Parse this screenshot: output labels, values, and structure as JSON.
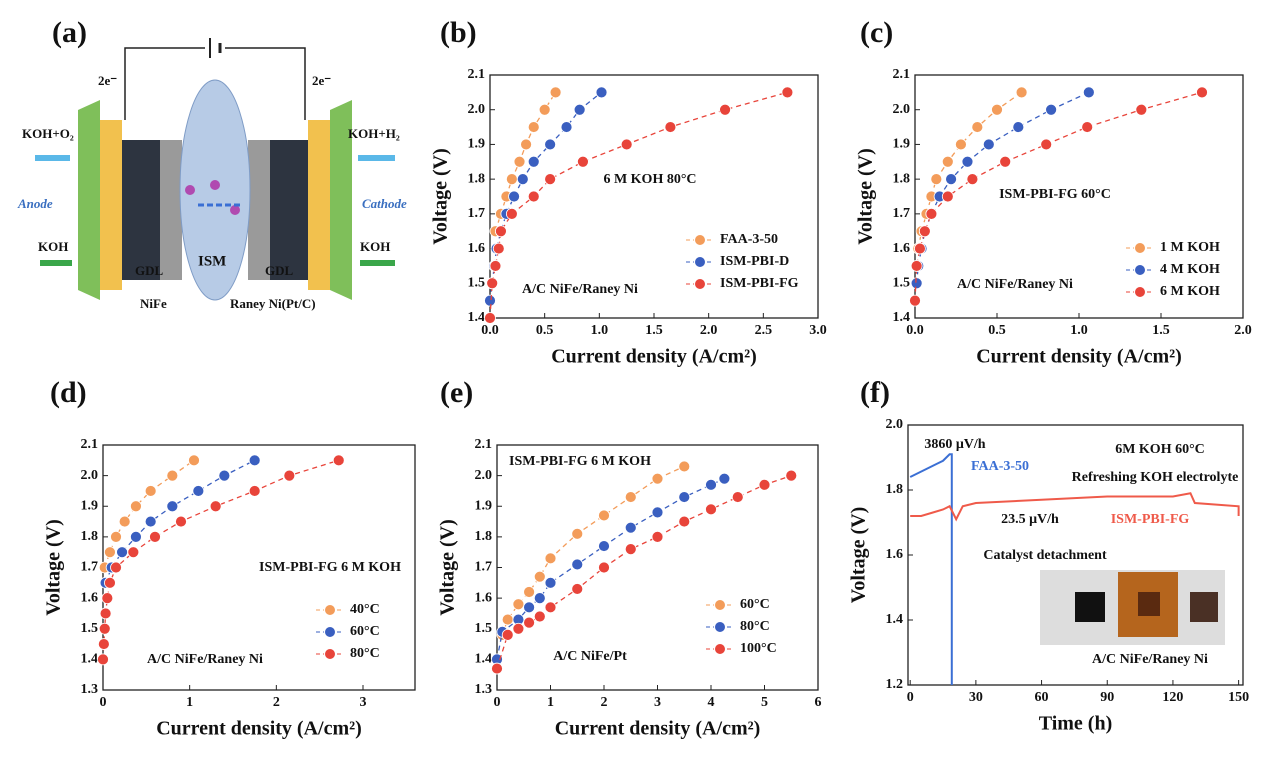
{
  "diagram": {
    "label": "(a)",
    "texts": [
      "2e⁻",
      "2e⁻",
      "KOH+O₂",
      "KOH+H₂",
      "Anode",
      "Cathode",
      "KOH",
      "KOH",
      "GDL",
      "GDL",
      "ISM",
      "NiFe",
      "Raney Ni(Pt/C)"
    ]
  },
  "chart_data": [
    {
      "label": "(b)",
      "type": "line",
      "linestyle": "dashed",
      "markers": true,
      "legend": "lower right",
      "xlabel": "Current density (A/cm²)",
      "ylabel": "Voltage (V)",
      "xlim": [
        0,
        3
      ],
      "ylim": [
        1.4,
        2.1
      ],
      "xticks": [
        {
          "value": 0,
          "label": "0.0"
        },
        0.5,
        {
          "value": 1,
          "label": "1.0"
        },
        1.5,
        {
          "value": 2,
          "label": "2.0"
        },
        2.5,
        {
          "value": 3,
          "label": "3.0"
        }
      ],
      "yticks": [
        1.4,
        1.5,
        1.6,
        1.7,
        1.8,
        1.9,
        {
          "value": 2,
          "label": "2.0"
        },
        2.1
      ],
      "annotations": [
        "6 M KOH  80°C",
        "A/C NiFe/Raney Ni"
      ],
      "series": [
        {
          "name": "FAA-3-50",
          "color": "#f39c5a",
          "x": [
            0.05,
            0.1,
            0.15,
            0.2,
            0.27,
            0.33,
            0.4,
            0.5,
            0.6
          ],
          "values": [
            1.65,
            1.7,
            1.75,
            1.8,
            1.85,
            1.9,
            1.95,
            2.0,
            2.05
          ]
        },
        {
          "name": "ISM-PBI-D",
          "color": "#3a5fc0",
          "x": [
            0,
            0.02,
            0.04,
            0.06,
            0.1,
            0.15,
            0.22,
            0.3,
            0.4,
            0.55,
            0.7,
            0.82,
            1.02
          ],
          "values": [
            1.45,
            1.5,
            1.55,
            1.6,
            1.65,
            1.7,
            1.75,
            1.8,
            1.85,
            1.9,
            1.95,
            2.0,
            2.05
          ]
        },
        {
          "name": "ISM-PBI-FG",
          "color": "#e8443a",
          "x": [
            0,
            0.02,
            0.05,
            0.08,
            0.1,
            0.2,
            0.4,
            0.55,
            0.85,
            1.25,
            1.65,
            2.15,
            2.72
          ],
          "values": [
            1.4,
            1.5,
            1.55,
            1.6,
            1.65,
            1.7,
            1.75,
            1.8,
            1.85,
            1.9,
            1.95,
            2.0,
            2.05
          ]
        }
      ]
    },
    {
      "label": "(c)",
      "type": "line",
      "linestyle": "dashed",
      "markers": true,
      "legend": "lower right",
      "xlabel": "Current density (A/cm²)",
      "ylabel": "Voltage (V)",
      "xlim": [
        0,
        2
      ],
      "ylim": [
        1.4,
        2.1
      ],
      "xticks": [
        {
          "value": 0,
          "label": "0.0"
        },
        0.5,
        {
          "value": 1,
          "label": "1.0"
        },
        1.5,
        {
          "value": 2,
          "label": "2.0"
        }
      ],
      "yticks": [
        1.4,
        1.5,
        1.6,
        1.7,
        1.8,
        1.9,
        {
          "value": 2,
          "label": "2.0"
        },
        2.1
      ],
      "annotations": [
        "ISM-PBI-FG  60°C",
        "A/C NiFe/Raney Ni"
      ],
      "series": [
        {
          "name": "1 M KOH",
          "color": "#f39c5a",
          "x": [
            0.02,
            0.04,
            0.07,
            0.1,
            0.13,
            0.2,
            0.28,
            0.38,
            0.5,
            0.65
          ],
          "values": [
            1.6,
            1.65,
            1.7,
            1.75,
            1.8,
            1.85,
            1.9,
            1.95,
            2.0,
            2.05
          ]
        },
        {
          "name": "4 M KOH",
          "color": "#3a5fc0",
          "x": [
            0.01,
            0.02,
            0.04,
            0.06,
            0.1,
            0.15,
            0.22,
            0.32,
            0.45,
            0.63,
            0.83,
            1.06
          ],
          "values": [
            1.5,
            1.55,
            1.6,
            1.65,
            1.7,
            1.75,
            1.8,
            1.85,
            1.9,
            1.95,
            2.0,
            2.05
          ]
        },
        {
          "name": "6 M KOH",
          "color": "#e8443a",
          "x": [
            0,
            0.01,
            0.03,
            0.06,
            0.1,
            0.2,
            0.35,
            0.55,
            0.8,
            1.05,
            1.38,
            1.75
          ],
          "values": [
            1.45,
            1.55,
            1.6,
            1.65,
            1.7,
            1.75,
            1.8,
            1.85,
            1.9,
            1.95,
            2.0,
            2.05
          ]
        }
      ]
    },
    {
      "label": "(d)",
      "type": "line",
      "linestyle": "dashed",
      "markers": true,
      "legend": "lower right",
      "xlabel": "Current density (A/cm²)",
      "ylabel": "Voltage (V)",
      "xlim": [
        0,
        3.6
      ],
      "ylim": [
        1.3,
        2.1
      ],
      "xticks": [
        0,
        1,
        2,
        3
      ],
      "yticks": [
        1.3,
        1.4,
        1.5,
        1.6,
        1.7,
        1.8,
        1.9,
        {
          "value": 2,
          "label": "2.0"
        },
        2.1
      ],
      "annotations": [
        "ISM-PBI-FG  6 M KOH",
        "A/C NiFe/Raney Ni"
      ],
      "series": [
        {
          "name": "40°C",
          "color": "#f39c5a",
          "x": [
            0.02,
            0.08,
            0.15,
            0.25,
            0.38,
            0.55,
            0.8,
            1.05
          ],
          "values": [
            1.7,
            1.75,
            1.8,
            1.85,
            1.9,
            1.95,
            2.0,
            2.05
          ]
        },
        {
          "name": "60°C",
          "color": "#3a5fc0",
          "x": [
            0.03,
            0.1,
            0.22,
            0.38,
            0.55,
            0.8,
            1.1,
            1.4,
            1.75
          ],
          "values": [
            1.65,
            1.7,
            1.75,
            1.8,
            1.85,
            1.9,
            1.95,
            2.0,
            2.05
          ]
        },
        {
          "name": "80°C",
          "color": "#e8443a",
          "x": [
            0,
            0.01,
            0.02,
            0.03,
            0.05,
            0.08,
            0.15,
            0.35,
            0.6,
            0.9,
            1.3,
            1.75,
            2.15,
            2.72
          ],
          "values": [
            1.4,
            1.45,
            1.5,
            1.55,
            1.6,
            1.65,
            1.7,
            1.75,
            1.8,
            1.85,
            1.9,
            1.95,
            2.0,
            2.05
          ]
        }
      ]
    },
    {
      "label": "(e)",
      "type": "line",
      "linestyle": "dashed",
      "markers": true,
      "legend": "lower right",
      "xlabel": "Current density (A/cm²)",
      "ylabel": "Voltage (V)",
      "xlim": [
        0,
        6
      ],
      "ylim": [
        1.3,
        2.1
      ],
      "xticks": [
        0,
        1,
        2,
        3,
        4,
        5,
        6
      ],
      "yticks": [
        1.3,
        1.4,
        1.5,
        1.6,
        1.7,
        1.8,
        1.9,
        {
          "value": 2,
          "label": "2.0"
        },
        2.1
      ],
      "annotations": [
        "ISM-PBI-FG  6 M KOH",
        "A/C NiFe/Pt"
      ],
      "series": [
        {
          "name": "60°C",
          "color": "#f39c5a",
          "x": [
            0.1,
            0.2,
            0.4,
            0.6,
            0.8,
            1,
            1.5,
            2,
            2.5,
            3,
            3.5
          ],
          "values": [
            1.48,
            1.53,
            1.58,
            1.62,
            1.67,
            1.73,
            1.81,
            1.87,
            1.93,
            1.99,
            2.03
          ]
        },
        {
          "name": "80°C",
          "color": "#3a5fc0",
          "x": [
            0,
            0.1,
            0.4,
            0.6,
            0.8,
            1,
            1.5,
            2,
            2.5,
            3,
            3.5,
            4,
            4.25
          ],
          "values": [
            1.4,
            1.49,
            1.53,
            1.57,
            1.6,
            1.65,
            1.71,
            1.77,
            1.83,
            1.88,
            1.93,
            1.97,
            1.99
          ]
        },
        {
          "name": "100°C",
          "color": "#e8443a",
          "x": [
            0,
            0.2,
            0.4,
            0.6,
            0.8,
            1,
            1.5,
            2,
            2.5,
            3,
            3.5,
            4,
            4.5,
            5,
            5.5
          ],
          "values": [
            1.37,
            1.48,
            1.5,
            1.52,
            1.54,
            1.57,
            1.63,
            1.7,
            1.76,
            1.8,
            1.85,
            1.89,
            1.93,
            1.97,
            2.0
          ]
        }
      ]
    },
    {
      "label": "(f)",
      "type": "line",
      "linestyle": "solid",
      "markers": false,
      "xlabel": "Time (h)",
      "ylabel": "Voltage (V)",
      "xlim": [
        -1,
        152
      ],
      "ylim": [
        1.2,
        2.0
      ],
      "xticks": [
        0,
        30,
        60,
        90,
        120,
        150
      ],
      "yticks": [
        1.2,
        1.4,
        1.6,
        1.8,
        {
          "value": 2,
          "label": "2.0"
        }
      ],
      "annotations": [
        "3860 μV/h",
        "6M KOH  60°C",
        "Refreshing KOH electrolyte",
        "23.5 μV/h",
        "Catalyst detachment",
        "A/C NiFe/Raney Ni"
      ],
      "series": [
        {
          "name": "FAA-3-50",
          "color": "#3b6fd4",
          "x": [
            0,
            3,
            6,
            9,
            12,
            15,
            18,
            19,
            19
          ],
          "values": [
            1.84,
            1.85,
            1.86,
            1.87,
            1.88,
            1.89,
            1.91,
            1.91,
            1.2
          ]
        },
        {
          "name": "ISM-PBI-FG",
          "color": "#ef5a4a",
          "x": [
            0,
            5,
            10,
            15,
            18,
            21,
            24,
            30,
            60,
            90,
            120,
            128,
            130,
            150,
            150
          ],
          "values": [
            1.72,
            1.72,
            1.73,
            1.74,
            1.75,
            1.71,
            1.75,
            1.76,
            1.77,
            1.78,
            1.78,
            1.79,
            1.76,
            1.75,
            1.72
          ]
        }
      ]
    }
  ]
}
